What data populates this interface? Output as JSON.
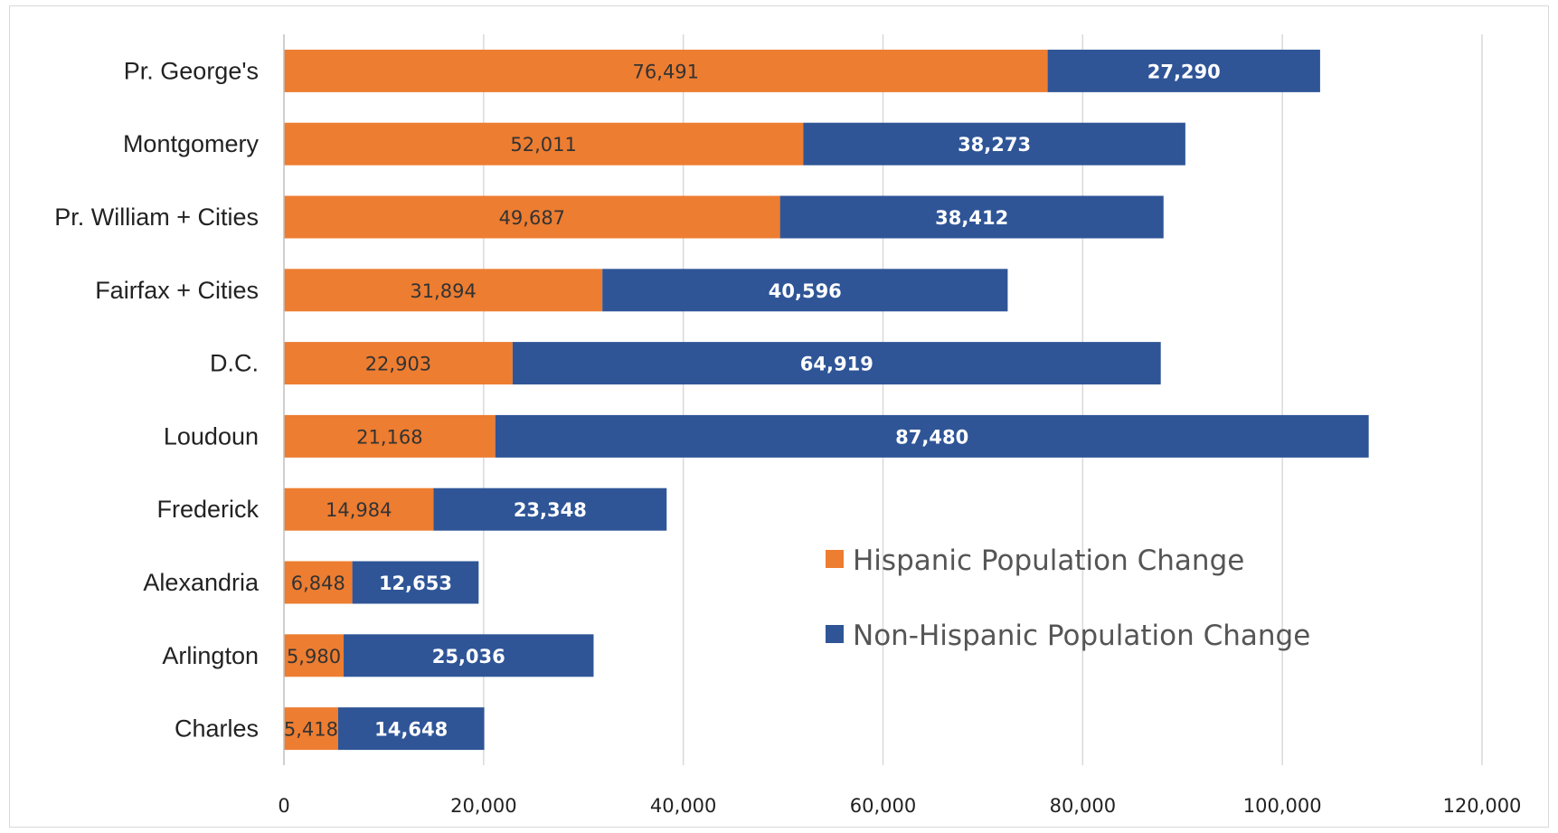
{
  "chart_data": {
    "type": "bar",
    "orientation": "horizontal",
    "stacked": true,
    "title": "",
    "xlabel": "",
    "ylabel": "",
    "categories": [
      "Pr. George's",
      "Montgomery",
      "Pr. William + Cities",
      "Fairfax + Cities",
      "D.C.",
      "Loudoun",
      "Frederick",
      "Alexandria",
      "Arlington",
      "Charles"
    ],
    "series": [
      {
        "name": "Hispanic Population Change",
        "color": "#ed7d31",
        "values": [
          76491,
          52011,
          49687,
          31894,
          22903,
          21168,
          14984,
          6848,
          5980,
          5418
        ],
        "labels": [
          "76,491",
          "52,011",
          "49,687",
          "31,894",
          "22,903",
          "21,168",
          "14,984",
          "6,848",
          "5,980",
          "5,418"
        ]
      },
      {
        "name": "Non-Hispanic Population Change",
        "color": "#2f5597",
        "values": [
          27290,
          38273,
          38412,
          40596,
          64919,
          87480,
          23348,
          12653,
          25036,
          14648
        ],
        "labels": [
          "27,290",
          "38,273",
          "38,412",
          "40,596",
          "64,919",
          "87,480",
          "23,348",
          "12,653",
          "25,036",
          "14,648"
        ]
      }
    ],
    "xlim": [
      0,
      120000
    ],
    "xticks": [
      0,
      20000,
      40000,
      60000,
      80000,
      100000,
      120000
    ],
    "xtick_labels": [
      "0",
      "20,000",
      "40,000",
      "60,000",
      "80,000",
      "100,000",
      "120,000"
    ],
    "grid": true,
    "legend_position": "center-right"
  }
}
